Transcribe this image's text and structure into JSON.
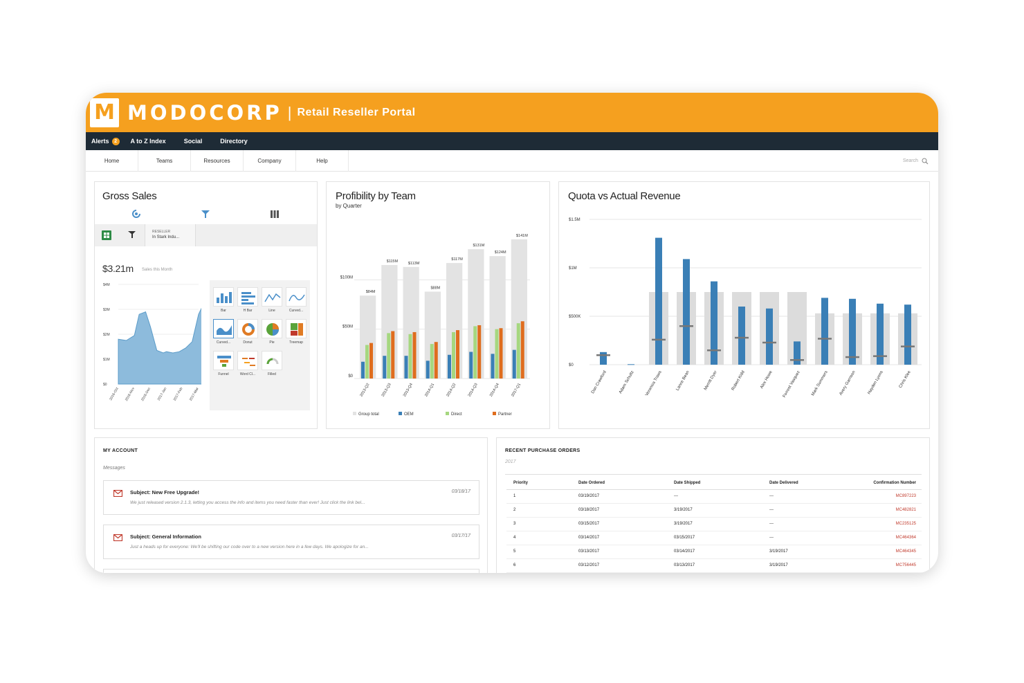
{
  "header": {
    "logo_letter": "M",
    "brand": "MODOCORP",
    "separator": "|",
    "portal": "Retail Reseller Portal"
  },
  "topnav": {
    "alerts": "Alerts",
    "alerts_count": "2",
    "items": [
      "A to Z Index",
      "Social",
      "Directory"
    ]
  },
  "mainnav": {
    "items": [
      "Home",
      "Teams",
      "Resources",
      "Company",
      "Help"
    ],
    "search_placeholder": "Search"
  },
  "gross_sales": {
    "title": "Gross Sales",
    "filter_label": "RESELLER",
    "filter_value": "In Stark Indu...",
    "amount": "$3.21m",
    "amount_caption": "Sales this Month",
    "chart_types": [
      "Bar",
      "H Bar",
      "Line",
      "Curved...",
      "Curved...",
      "Donut",
      "Pie",
      "Treemap",
      "Funnel",
      "Word Cl...",
      "Filled"
    ],
    "chart_data": {
      "type": "area",
      "ytick_labels": [
        "$0",
        "$1M",
        "$2M",
        "$3M",
        "$4M"
      ],
      "ylim": [
        0,
        4
      ],
      "categories": [
        "2016-Oct",
        "2016-Nov",
        "2016-Dec",
        "2017-Jan",
        "2017-Feb",
        "2017-Mar"
      ],
      "x": [
        0,
        0.5,
        1,
        1.3,
        1.7,
        2,
        2.4,
        2.8,
        3,
        3.4,
        3.8,
        4.2,
        4.6,
        5,
        5.3,
        5.6
      ],
      "values": [
        1.8,
        1.75,
        1.95,
        2.8,
        2.9,
        2.3,
        1.35,
        1.25,
        1.3,
        1.25,
        1.3,
        1.45,
        1.7,
        2.8,
        3.2,
        3.5
      ]
    }
  },
  "profitability": {
    "title": "Profibility by Team",
    "subtitle": "by Quarter",
    "chart_data": {
      "type": "bar",
      "categories": [
        "2013-Q2",
        "2013-Q3",
        "2013-Q4",
        "2014-Q1",
        "2014-Q2",
        "2014-Q3",
        "2014-Q4",
        "2017-Q1"
      ],
      "group_total_labels": [
        "$84M",
        "$115M",
        "$113M",
        "$88M",
        "$117M",
        "$131M",
        "$124M",
        "$141M"
      ],
      "ytick_labels": [
        "$0",
        "$50M",
        "$100M"
      ],
      "ylim": [
        0,
        150
      ],
      "series": [
        {
          "name": "Group total",
          "values": [
            84,
            115,
            113,
            88,
            117,
            131,
            124,
            141
          ]
        },
        {
          "name": "OEM",
          "values": [
            17,
            23,
            23,
            18,
            24,
            27,
            25,
            29
          ]
        },
        {
          "name": "Direct",
          "values": [
            34,
            46,
            45,
            35,
            47,
            53,
            50,
            56
          ]
        },
        {
          "name": "Partner",
          "values": [
            36,
            48,
            47,
            37,
            49,
            54,
            51,
            58
          ]
        }
      ],
      "colors": [
        "#e3e3e3",
        "#3a7fb6",
        "#a6d77f",
        "#df6d1e"
      ]
    }
  },
  "quota": {
    "title": "Quota vs Actual Revenue",
    "chart_data": {
      "type": "bar",
      "categories": [
        "Dan Crawford",
        "Adam Schultz",
        "Veronica Traws",
        "Lance Bean",
        "Merritt Dyer",
        "Robert Kidd",
        "Alex Howe",
        "Forrest Vasquez",
        "Mark Summers",
        "Avery Garrison",
        "Hayden Lyons",
        "Chris Klee"
      ],
      "ytick_labels": [
        "$0",
        "$500K",
        "$1M",
        "$1.5M"
      ],
      "ylim": [
        0,
        1500
      ],
      "series": [
        {
          "name": "Quota",
          "values": [
            0,
            0,
            750,
            750,
            750,
            750,
            750,
            750,
            530,
            530,
            530,
            530
          ]
        },
        {
          "name": "Actual",
          "values": [
            130,
            5,
            1310,
            1090,
            860,
            600,
            580,
            240,
            690,
            680,
            630,
            620
          ]
        },
        {
          "name": "Target",
          "values": [
            100,
            0,
            260,
            400,
            150,
            280,
            230,
            50,
            270,
            80,
            90,
            190
          ]
        }
      ],
      "colors": [
        "#dcdcdc",
        "#3a7fb6",
        "#777777"
      ]
    }
  },
  "account": {
    "title": "MY ACCOUNT",
    "messages_label": "Messages",
    "messages": [
      {
        "subject": "Subject: New Free Upgrade!",
        "date": "03/18/17",
        "body": "We just released version 2.1.3, letting you access the info and items you need faster than ever! Just click the link bel..."
      },
      {
        "subject": "Subject: General Information",
        "date": "03/17/17",
        "body": "Just a heads up for everyone: We'll be shifting our code over to a new version here in a few days. We apologize for an..."
      }
    ]
  },
  "orders": {
    "title": "RECENT PURCHASE ORDERS",
    "year": "2017",
    "columns": [
      "Priority",
      "Date Ordered",
      "Date Shipped",
      "Date Delivered",
      "Confirmation Number"
    ],
    "rows": [
      [
        "1",
        "03/19/2017",
        "---",
        "---",
        "MC897223"
      ],
      [
        "2",
        "03/18/2017",
        "3/19/2017",
        "---",
        "MC482821"
      ],
      [
        "3",
        "03/15/2017",
        "3/19/2017",
        "---",
        "MC235125"
      ],
      [
        "4",
        "03/14/2017",
        "03/15/2017",
        "---",
        "MC464364"
      ],
      [
        "5",
        "03/13/2017",
        "03/14/2017",
        "3/19/2017",
        "MC464345"
      ],
      [
        "6",
        "03/12/2017",
        "03/13/2017",
        "3/19/2017",
        "MC756445"
      ]
    ]
  }
}
